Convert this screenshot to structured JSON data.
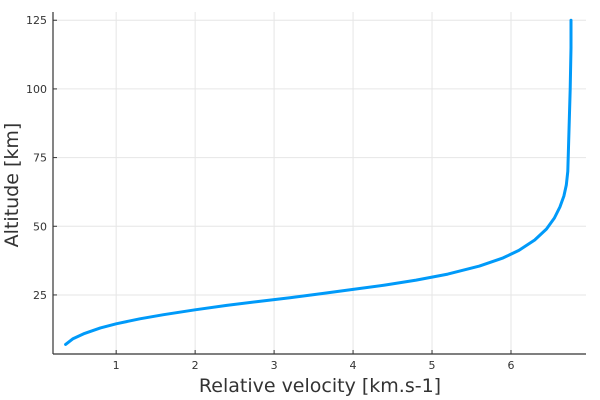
{
  "chart_data": {
    "type": "line",
    "title": "",
    "xlabel": "Relative velocity [km.s-1]",
    "ylabel": "Altitude [km]",
    "xlim": [
      0.2,
      6.95
    ],
    "ylim": [
      3.5,
      128
    ],
    "xticks": [
      1,
      2,
      3,
      4,
      5,
      6
    ],
    "yticks": [
      25,
      50,
      75,
      100,
      125
    ],
    "grid": true,
    "legend": "none",
    "colors": {
      "line": "#009af9",
      "axis": "#333333",
      "grid": "#e6e6e6"
    },
    "series": [
      {
        "x": [
          0.36,
          0.45,
          0.6,
          0.8,
          1.0,
          1.3,
          1.6,
          2.0,
          2.4,
          2.8,
          3.2,
          3.6,
          4.0,
          4.4,
          4.8,
          5.2,
          5.6,
          5.9,
          6.1,
          6.3,
          6.45,
          6.55,
          6.62,
          6.67,
          6.7,
          6.72,
          6.73,
          6.74,
          6.75,
          6.76,
          6.76
        ],
        "y": [
          7,
          9,
          11,
          13,
          14.5,
          16.3,
          17.8,
          19.6,
          21.2,
          22.6,
          24.0,
          25.5,
          27.0,
          28.6,
          30.4,
          32.6,
          35.5,
          38.5,
          41.2,
          45.0,
          49.0,
          53.0,
          57.0,
          61.0,
          65.0,
          70.0,
          80.0,
          90.0,
          100.0,
          115.0,
          125.0
        ]
      }
    ]
  }
}
